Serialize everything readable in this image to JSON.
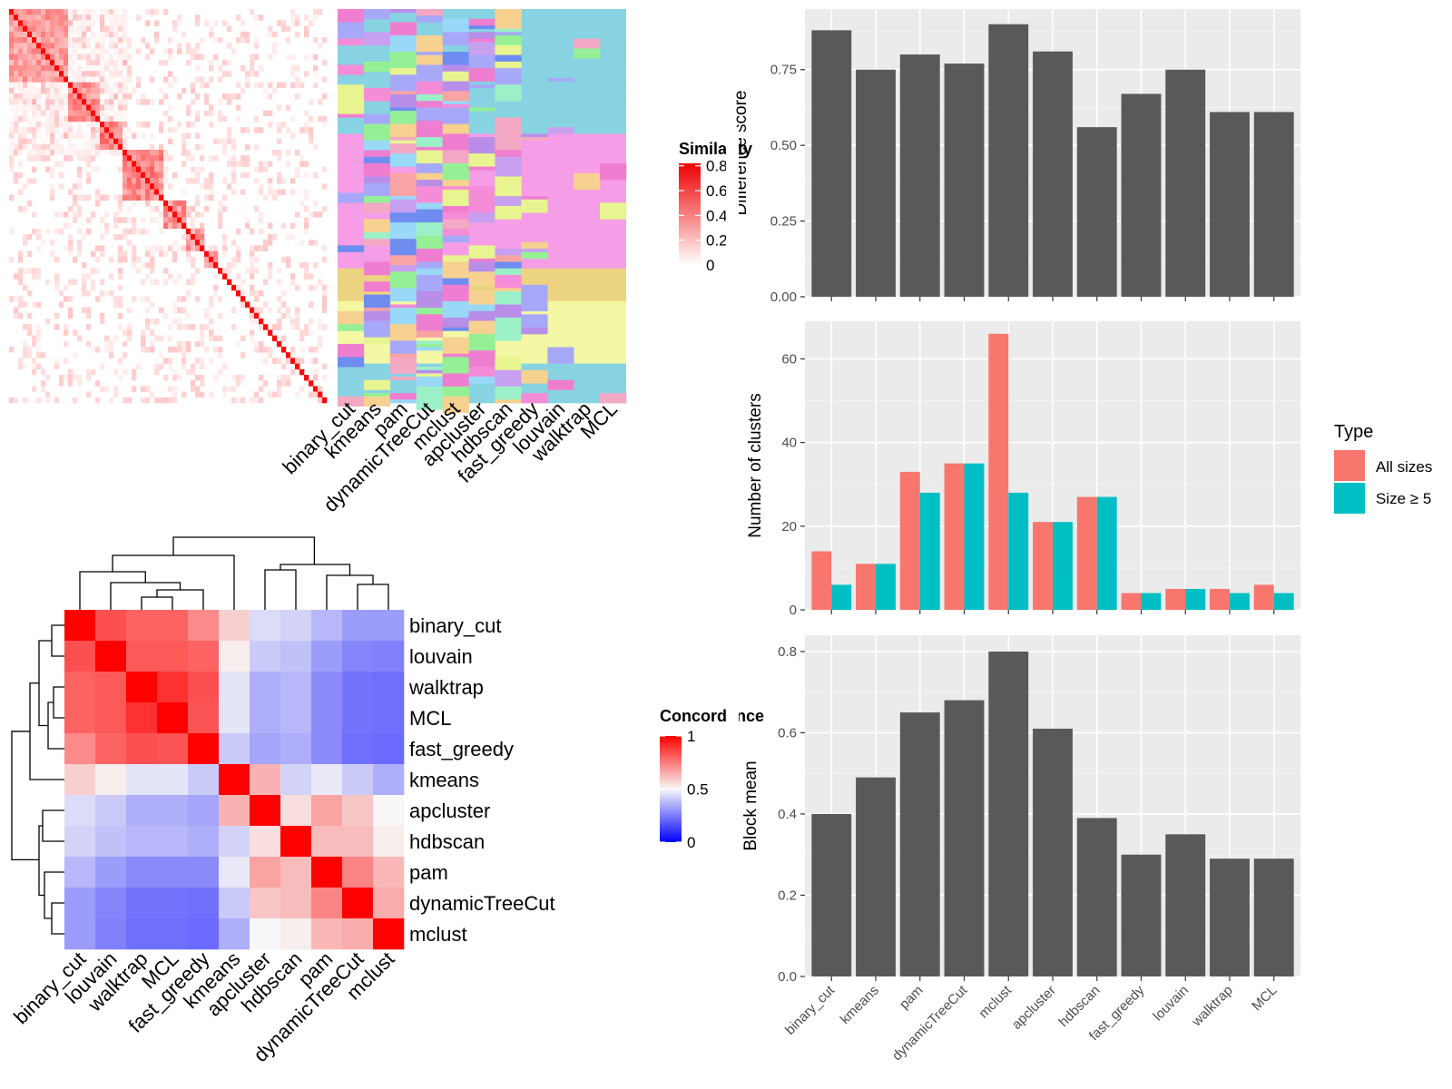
{
  "chart_data": [
    {
      "type": "heatmap",
      "legend": {
        "title": "Similarity",
        "ticks": [
          "0.8",
          "0.6",
          "0.4",
          "0.2",
          "0"
        ]
      },
      "blocks": [
        0.18,
        0.1,
        0.08,
        0.12,
        0.07,
        0.06,
        0.04,
        0.02
      ],
      "block_strength": [
        0.55,
        0.6,
        0.7,
        0.65,
        0.6,
        0.55,
        0.5,
        0.45
      ]
    },
    {
      "type": "heatmap",
      "columns": [
        "binary_cut",
        "kmeans",
        "pam",
        "dynamicTreeCut",
        "mclust",
        "apcluster",
        "hdbscan",
        "fast_greedy",
        "louvain",
        "walktrap",
        "MCL"
      ],
      "groups": [
        {
          "color": "#87d3e2",
          "frac": 0.32
        },
        {
          "color": "#f59de6",
          "frac": 0.34
        },
        {
          "color": "#ecd382",
          "frac": 0.08
        },
        {
          "color": "#f4f8a4",
          "frac": 0.16
        },
        {
          "color": "#87d3e2",
          "frac": 0.1
        }
      ],
      "palette": [
        "#b88ee8",
        "#f9a4a4",
        "#95f095",
        "#c8a0f0",
        "#f7d190",
        "#9ad8f8",
        "#e8f490",
        "#f58cd8",
        "#a8a8f8",
        "#f3a8c4",
        "#9cf0c8",
        "#6f8cf0",
        "#f07ed0"
      ]
    },
    {
      "type": "bar",
      "categories": [
        "binary_cut",
        "kmeans",
        "pam",
        "dynamicTreeCut",
        "mclust",
        "apcluster",
        "hdbscan",
        "fast_greedy",
        "louvain",
        "walktrap",
        "MCL"
      ],
      "values": [
        0.88,
        0.75,
        0.8,
        0.77,
        0.9,
        0.81,
        0.56,
        0.67,
        0.75,
        0.61,
        0.61
      ],
      "ylabel": "Difference score",
      "ylim": [
        0,
        0.95
      ],
      "yticks": [
        "0.00",
        "0.25",
        "0.50",
        "0.75"
      ],
      "ytick_values": [
        0,
        0.25,
        0.5,
        0.75
      ],
      "bar_color": "#595959"
    },
    {
      "type": "bar",
      "categories": [
        "binary_cut",
        "kmeans",
        "pam",
        "dynamicTreeCut",
        "mclust",
        "apcluster",
        "hdbscan",
        "fast_greedy",
        "louvain",
        "walktrap",
        "MCL"
      ],
      "series": [
        {
          "name": "All sizes",
          "color": "#f8766d",
          "values": [
            14,
            11,
            33,
            35,
            66,
            21,
            27,
            4,
            5,
            5,
            6
          ]
        },
        {
          "name": "Size ≥ 5",
          "color": "#00bfc4",
          "values": [
            6,
            11,
            28,
            35,
            28,
            21,
            27,
            4,
            5,
            4,
            4
          ]
        }
      ],
      "ylabel": "Number of clusters",
      "ylim": [
        0,
        69
      ],
      "yticks": [
        "0",
        "20",
        "40",
        "60"
      ],
      "ytick_values": [
        0,
        20,
        40,
        60
      ],
      "legend": {
        "title": "Type",
        "position": "right"
      }
    },
    {
      "type": "bar",
      "categories": [
        "binary_cut",
        "kmeans",
        "pam",
        "dynamicTreeCut",
        "mclust",
        "apcluster",
        "hdbscan",
        "fast_greedy",
        "louvain",
        "walktrap",
        "MCL"
      ],
      "values": [
        0.4,
        0.49,
        0.65,
        0.68,
        0.8,
        0.61,
        0.39,
        0.3,
        0.35,
        0.29,
        0.29
      ],
      "ylabel": "Block mean",
      "ylim": [
        0,
        0.84
      ],
      "yticks": [
        "0.0",
        "0.2",
        "0.4",
        "0.6",
        "0.8"
      ],
      "ytick_values": [
        0,
        0.2,
        0.4,
        0.6,
        0.8
      ],
      "bar_color": "#595959"
    },
    {
      "type": "heatmap",
      "rows": [
        "binary_cut",
        "louvain",
        "walktrap",
        "MCL",
        "fast_greedy",
        "kmeans",
        "apcluster",
        "hdbscan",
        "pam",
        "dynamicTreeCut",
        "mclust"
      ],
      "columns": [
        "binary_cut",
        "louvain",
        "walktrap",
        "MCL",
        "fast_greedy",
        "kmeans",
        "apcluster",
        "hdbscan",
        "pam",
        "dynamicTreeCut",
        "mclust"
      ],
      "values": [
        [
          1.0,
          0.84,
          0.8,
          0.8,
          0.72,
          0.58,
          0.44,
          0.42,
          0.36,
          0.3,
          0.3
        ],
        [
          0.84,
          1.0,
          0.82,
          0.82,
          0.8,
          0.52,
          0.4,
          0.38,
          0.3,
          0.25,
          0.24
        ],
        [
          0.8,
          0.82,
          1.0,
          0.9,
          0.84,
          0.46,
          0.34,
          0.36,
          0.26,
          0.21,
          0.2
        ],
        [
          0.8,
          0.82,
          0.9,
          1.0,
          0.83,
          0.46,
          0.34,
          0.36,
          0.26,
          0.21,
          0.2
        ],
        [
          0.72,
          0.8,
          0.84,
          0.83,
          1.0,
          0.4,
          0.32,
          0.34,
          0.26,
          0.2,
          0.19
        ],
        [
          0.58,
          0.52,
          0.46,
          0.46,
          0.4,
          1.0,
          0.64,
          0.42,
          0.47,
          0.4,
          0.34
        ],
        [
          0.44,
          0.4,
          0.34,
          0.34,
          0.32,
          0.64,
          1.0,
          0.55,
          0.67,
          0.6,
          0.5
        ],
        [
          0.42,
          0.38,
          0.36,
          0.36,
          0.34,
          0.42,
          0.55,
          1.0,
          0.62,
          0.62,
          0.52
        ],
        [
          0.36,
          0.3,
          0.26,
          0.26,
          0.26,
          0.47,
          0.67,
          0.62,
          1.0,
          0.73,
          0.63
        ],
        [
          0.3,
          0.25,
          0.21,
          0.21,
          0.2,
          0.4,
          0.6,
          0.62,
          0.73,
          1.0,
          0.65
        ],
        [
          0.3,
          0.24,
          0.2,
          0.2,
          0.19,
          0.34,
          0.5,
          0.52,
          0.63,
          0.65,
          1.0
        ]
      ],
      "legend": {
        "title": "Concordance",
        "ticks": [
          "1",
          "0.5",
          "0"
        ]
      }
    }
  ]
}
